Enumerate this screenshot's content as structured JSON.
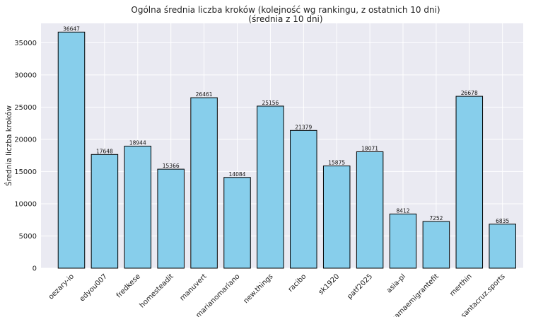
{
  "chart_data": {
    "type": "bar",
    "title": "Ogólna średnia liczba kroków (kolejność wg rankingu, z ostatnich 10 dni)",
    "subtitle": "(średnia z 10 dni)",
    "xlabel": "",
    "ylabel": "Średnia liczba kroków",
    "ylim": [
      0,
      38000
    ],
    "yticks": [
      0,
      5000,
      10000,
      15000,
      20000,
      25000,
      30000,
      35000
    ],
    "grid": true,
    "bar_color": "#87CEEB",
    "bar_edge_color": "#000000",
    "categories": [
      "oezary-io",
      "edyou007",
      "fredkese",
      "homesteadit",
      "manuvert",
      "marianomariano",
      "new.things",
      "racibo",
      "sk1920",
      "patf2025",
      "asia-pl",
      "mamaemigrantefit",
      "merthin",
      "santacruz.sports"
    ],
    "values": [
      36647,
      17648,
      18944,
      15366,
      26461,
      14084,
      25156,
      21379,
      15875,
      18071,
      8412,
      7252,
      26678,
      6835
    ]
  }
}
